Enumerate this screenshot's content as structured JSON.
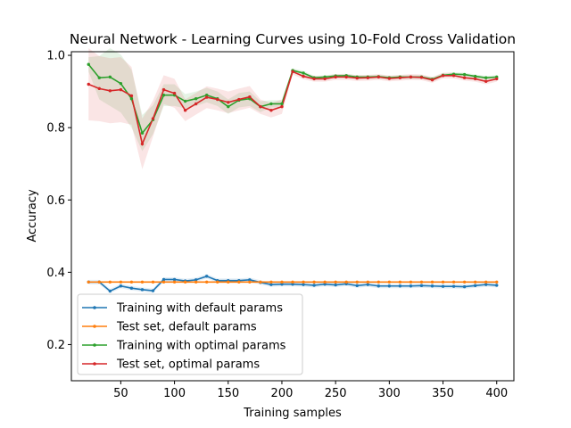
{
  "chart_data": {
    "type": "line",
    "title": "Neural Network - Learning Curves using 10-Fold Cross Validation",
    "xlabel": "Training samples",
    "ylabel": "Accuracy",
    "xlim": [
      4,
      416
    ],
    "ylim": [
      0.1,
      1.01
    ],
    "xticks": [
      50,
      100,
      150,
      200,
      250,
      300,
      350,
      400
    ],
    "yticks": [
      0.2,
      0.4,
      0.6,
      0.8,
      1.0
    ],
    "ytick_labels": [
      "0.2",
      "0.4",
      "0.6",
      "0.8",
      "1.0"
    ],
    "grid": false,
    "legend_position": "lower-left",
    "x": [
      20,
      30,
      40,
      50,
      60,
      70,
      80,
      90,
      100,
      110,
      120,
      130,
      140,
      150,
      160,
      170,
      180,
      190,
      200,
      210,
      220,
      230,
      240,
      250,
      260,
      270,
      280,
      290,
      300,
      310,
      320,
      330,
      340,
      350,
      360,
      370,
      380,
      390,
      400
    ],
    "series": [
      {
        "name": "Training with default params",
        "color": "#1f77b4",
        "values": [
          0.373,
          0.373,
          0.348,
          0.362,
          0.356,
          0.352,
          0.349,
          0.38,
          0.38,
          0.376,
          0.379,
          0.389,
          0.377,
          0.377,
          0.377,
          0.379,
          0.372,
          0.366,
          0.367,
          0.367,
          0.366,
          0.364,
          0.367,
          0.365,
          0.368,
          0.363,
          0.366,
          0.362,
          0.362,
          0.362,
          0.362,
          0.363,
          0.362,
          0.361,
          0.361,
          0.36,
          0.363,
          0.366,
          0.364
        ],
        "band": 0.006
      },
      {
        "name": "Test set, default params",
        "color": "#ff7f0e",
        "values": [
          0.373,
          0.373,
          0.373,
          0.373,
          0.373,
          0.373,
          0.373,
          0.373,
          0.373,
          0.373,
          0.373,
          0.373,
          0.373,
          0.373,
          0.373,
          0.373,
          0.373,
          0.373,
          0.373,
          0.373,
          0.373,
          0.373,
          0.373,
          0.373,
          0.373,
          0.373,
          0.373,
          0.373,
          0.373,
          0.373,
          0.373,
          0.373,
          0.373,
          0.373,
          0.373,
          0.373,
          0.373,
          0.373,
          0.373
        ],
        "band": 0.002
      },
      {
        "name": "Training with optimal params",
        "color": "#2ca02c",
        "values": [
          0.975,
          0.938,
          0.94,
          0.922,
          0.88,
          0.785,
          0.822,
          0.89,
          0.89,
          0.873,
          0.88,
          0.89,
          0.88,
          0.858,
          0.876,
          0.88,
          0.858,
          0.866,
          0.866,
          0.958,
          0.951,
          0.938,
          0.94,
          0.943,
          0.944,
          0.94,
          0.94,
          0.941,
          0.938,
          0.94,
          0.94,
          0.94,
          0.934,
          0.945,
          0.948,
          0.947,
          0.942,
          0.938,
          0.94
        ],
        "band": [
          0.02,
          0.06,
          0.08,
          0.08,
          0.08,
          0.05,
          0.04,
          0.03,
          0.03,
          0.02,
          0.02,
          0.02,
          0.02,
          0.02,
          0.02,
          0.02,
          0.015,
          0.01,
          0.01,
          0.006,
          0.006,
          0.005,
          0.005,
          0.005,
          0.005,
          0.005,
          0.005,
          0.005,
          0.005,
          0.005,
          0.005,
          0.005,
          0.005,
          0.005,
          0.005,
          0.005,
          0.005,
          0.005,
          0.005
        ]
      },
      {
        "name": "Test set, optimal params",
        "color": "#d62728",
        "values": [
          0.92,
          0.908,
          0.902,
          0.905,
          0.888,
          0.755,
          0.825,
          0.905,
          0.895,
          0.848,
          0.866,
          0.884,
          0.878,
          0.87,
          0.878,
          0.885,
          0.858,
          0.848,
          0.858,
          0.955,
          0.942,
          0.935,
          0.935,
          0.94,
          0.94,
          0.937,
          0.938,
          0.94,
          0.936,
          0.938,
          0.94,
          0.939,
          0.932,
          0.944,
          0.944,
          0.938,
          0.935,
          0.928,
          0.935
        ],
        "band": [
          0.1,
          0.09,
          0.09,
          0.09,
          0.08,
          0.07,
          0.05,
          0.04,
          0.04,
          0.03,
          0.03,
          0.03,
          0.03,
          0.03,
          0.03,
          0.03,
          0.02,
          0.02,
          0.02,
          0.008,
          0.008,
          0.008,
          0.008,
          0.008,
          0.008,
          0.008,
          0.008,
          0.008,
          0.008,
          0.008,
          0.008,
          0.008,
          0.008,
          0.008,
          0.008,
          0.008,
          0.008,
          0.008,
          0.008
        ]
      }
    ]
  }
}
